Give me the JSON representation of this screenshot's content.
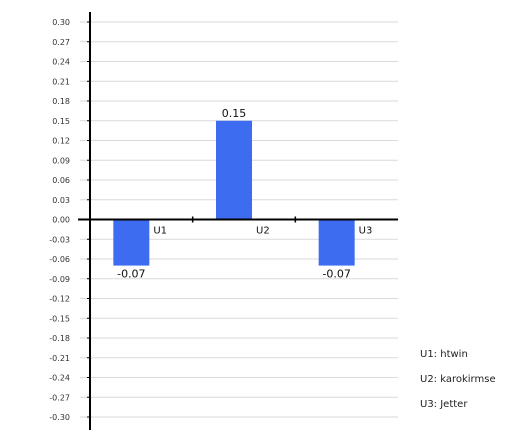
{
  "chart_data": {
    "type": "bar",
    "categories": [
      "U1",
      "U2",
      "U3"
    ],
    "values": [
      -0.07,
      0.15,
      -0.07
    ],
    "data_labels": [
      "-0.07",
      "0.15",
      "-0.07"
    ],
    "ylim": [
      -0.3,
      0.3
    ],
    "yticks": [
      "0.30",
      "0.27",
      "0.24",
      "0.21",
      "0.18",
      "0.15",
      "0.12",
      "0.09",
      "0.06",
      "0.03",
      "0.00",
      "-0.03",
      "-0.06",
      "-0.09",
      "-0.12",
      "-0.15",
      "-0.18",
      "-0.21",
      "-0.24",
      "-0.27",
      "-0.30"
    ],
    "grid": true,
    "bar_color": "#3d6cf0",
    "legend": {
      "placement": "bottom-right",
      "items": [
        {
          "key": "U1",
          "label": "U1: htwin"
        },
        {
          "key": "U2",
          "label": "U2: karokirmse"
        },
        {
          "key": "U3",
          "label": "U3: Jetter"
        }
      ]
    }
  }
}
